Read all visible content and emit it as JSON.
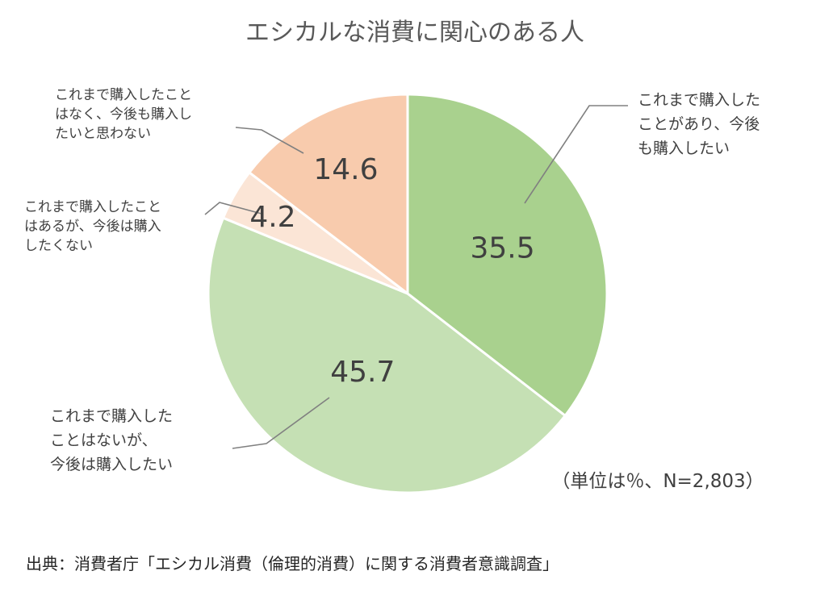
{
  "chart_data": {
    "type": "pie",
    "title": "エシカルな消費に関心のある人",
    "unit_note": "（単位は％、N=2,803）",
    "source": "出典：消費者庁「エシカル消費（倫理的消費）に関する消費者意識調査」",
    "slices": [
      {
        "label": [
          "これまで購入した",
          "ことがあり、今後",
          "も購入したい"
        ],
        "value": 35.5,
        "color": "#a9d18e"
      },
      {
        "label": [
          "これまで購入した",
          "ことはないが、",
          "今後は購入したい"
        ],
        "value": 45.7,
        "color": "#c5e0b4"
      },
      {
        "label": [
          "これまで購入したこと",
          "はあるが、今後は購入",
          "したくない"
        ],
        "value": 4.2,
        "color": "#fbe5d6"
      },
      {
        "label": [
          "これまで購入したこと",
          "はなく、今後も購入し",
          "たいと思わない"
        ],
        "value": 14.6,
        "color": "#f8cbad"
      }
    ]
  }
}
